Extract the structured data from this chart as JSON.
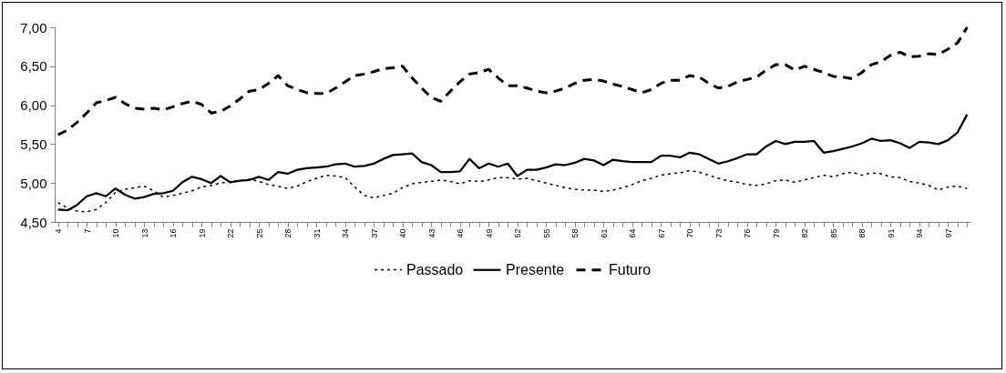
{
  "chart_data": {
    "type": "line",
    "categories": [
      "4",
      null,
      null,
      "7",
      null,
      null,
      "10",
      null,
      null,
      "13",
      null,
      null,
      "16",
      null,
      null,
      "19",
      null,
      null,
      "22",
      null,
      null,
      "25",
      null,
      null,
      "28",
      null,
      null,
      "31",
      null,
      null,
      "34",
      null,
      null,
      "37",
      null,
      null,
      "40",
      null,
      null,
      "43",
      null,
      null,
      "46",
      null,
      null,
      "49",
      null,
      null,
      "52",
      null,
      null,
      "55",
      null,
      null,
      "58",
      null,
      null,
      "61",
      null,
      null,
      "64",
      null,
      null,
      "67",
      null,
      null,
      "70",
      null,
      null,
      "73",
      null,
      null,
      "76",
      null,
      null,
      "79",
      null,
      null,
      "82",
      null,
      null,
      "85",
      null,
      null,
      "88",
      null,
      null,
      "91",
      null,
      null,
      "94",
      null,
      null,
      "97",
      null,
      null
    ],
    "series": [
      {
        "name": "Passado",
        "color": "#000000",
        "line_style": "dotted",
        "values": [
          4.75,
          4.68,
          4.64,
          4.63,
          4.66,
          4.75,
          4.88,
          4.92,
          4.94,
          4.96,
          4.9,
          4.82,
          4.84,
          4.87,
          4.9,
          4.95,
          4.97,
          5.0,
          5.02,
          5.03,
          5.05,
          5.02,
          4.98,
          4.96,
          4.93,
          4.96,
          5.02,
          5.06,
          5.1,
          5.09,
          5.07,
          4.95,
          4.84,
          4.81,
          4.84,
          4.87,
          4.94,
          4.99,
          5.01,
          5.02,
          5.04,
          5.02,
          4.99,
          5.03,
          5.02,
          5.04,
          5.07,
          5.07,
          5.05,
          5.06,
          5.03,
          5.0,
          4.97,
          4.94,
          4.92,
          4.91,
          4.91,
          4.89,
          4.91,
          4.94,
          4.98,
          5.03,
          5.06,
          5.1,
          5.12,
          5.13,
          5.16,
          5.14,
          5.1,
          5.06,
          5.03,
          5.01,
          4.98,
          4.97,
          4.99,
          5.03,
          5.04,
          5.01,
          5.04,
          5.07,
          5.1,
          5.08,
          5.12,
          5.14,
          5.1,
          5.13,
          5.12,
          5.08,
          5.07,
          5.02,
          5.0,
          4.97,
          4.91,
          4.95,
          4.96,
          4.93
        ]
      },
      {
        "name": "Presente",
        "color": "#000000",
        "line_style": "solid",
        "values": [
          4.66,
          4.65,
          4.72,
          4.83,
          4.87,
          4.83,
          4.93,
          4.85,
          4.8,
          4.82,
          4.86,
          4.87,
          4.9,
          5.01,
          5.08,
          5.05,
          5.0,
          5.09,
          5.01,
          5.03,
          5.04,
          5.08,
          5.04,
          5.14,
          5.12,
          5.17,
          5.19,
          5.2,
          5.21,
          5.24,
          5.25,
          5.21,
          5.22,
          5.25,
          5.31,
          5.36,
          5.37,
          5.38,
          5.27,
          5.23,
          5.14,
          5.14,
          5.15,
          5.31,
          5.19,
          5.25,
          5.21,
          5.25,
          5.09,
          5.17,
          5.17,
          5.2,
          5.24,
          5.23,
          5.26,
          5.31,
          5.29,
          5.23,
          5.3,
          5.28,
          5.27,
          5.27,
          5.27,
          5.35,
          5.35,
          5.33,
          5.39,
          5.37,
          5.31,
          5.25,
          5.28,
          5.32,
          5.37,
          5.37,
          5.47,
          5.54,
          5.5,
          5.53,
          5.53,
          5.54,
          5.39,
          5.41,
          5.44,
          5.47,
          5.51,
          5.57,
          5.54,
          5.55,
          5.51,
          5.45,
          5.53,
          5.52,
          5.5,
          5.55,
          5.65,
          5.88
        ]
      },
      {
        "name": "Futuro",
        "color": "#000000",
        "line_style": "dashed",
        "values": [
          5.62,
          5.68,
          5.78,
          5.9,
          6.03,
          6.06,
          6.1,
          6.02,
          5.96,
          5.95,
          5.96,
          5.94,
          5.98,
          6.02,
          6.05,
          6.01,
          5.9,
          5.92,
          5.99,
          6.08,
          6.18,
          6.2,
          6.28,
          6.38,
          6.25,
          6.2,
          6.16,
          6.15,
          6.15,
          6.22,
          6.3,
          6.38,
          6.4,
          6.43,
          6.47,
          6.48,
          6.5,
          6.35,
          6.22,
          6.1,
          6.05,
          6.18,
          6.3,
          6.4,
          6.42,
          6.46,
          6.35,
          6.25,
          6.25,
          6.22,
          6.18,
          6.16,
          6.18,
          6.22,
          6.28,
          6.32,
          6.33,
          6.31,
          6.27,
          6.24,
          6.2,
          6.16,
          6.2,
          6.28,
          6.32,
          6.32,
          6.38,
          6.36,
          6.28,
          6.22,
          6.24,
          6.3,
          6.33,
          6.36,
          6.45,
          6.52,
          6.52,
          6.45,
          6.5,
          6.46,
          6.42,
          6.37,
          6.36,
          6.34,
          6.42,
          6.52,
          6.56,
          6.64,
          6.68,
          6.62,
          6.63,
          6.66,
          6.65,
          6.72,
          6.8,
          7.0
        ]
      }
    ],
    "ylim": [
      4.5,
      7.0
    ],
    "yticks": [
      {
        "value": 4.5,
        "label": "4,50"
      },
      {
        "value": 5.0,
        "label": "5,00"
      },
      {
        "value": 5.5,
        "label": "5,50"
      },
      {
        "value": 6.0,
        "label": "6,00"
      },
      {
        "value": 6.5,
        "label": "6,50"
      },
      {
        "value": 7.0,
        "label": "7,00"
      }
    ],
    "grid": false,
    "legend": "bottom"
  }
}
